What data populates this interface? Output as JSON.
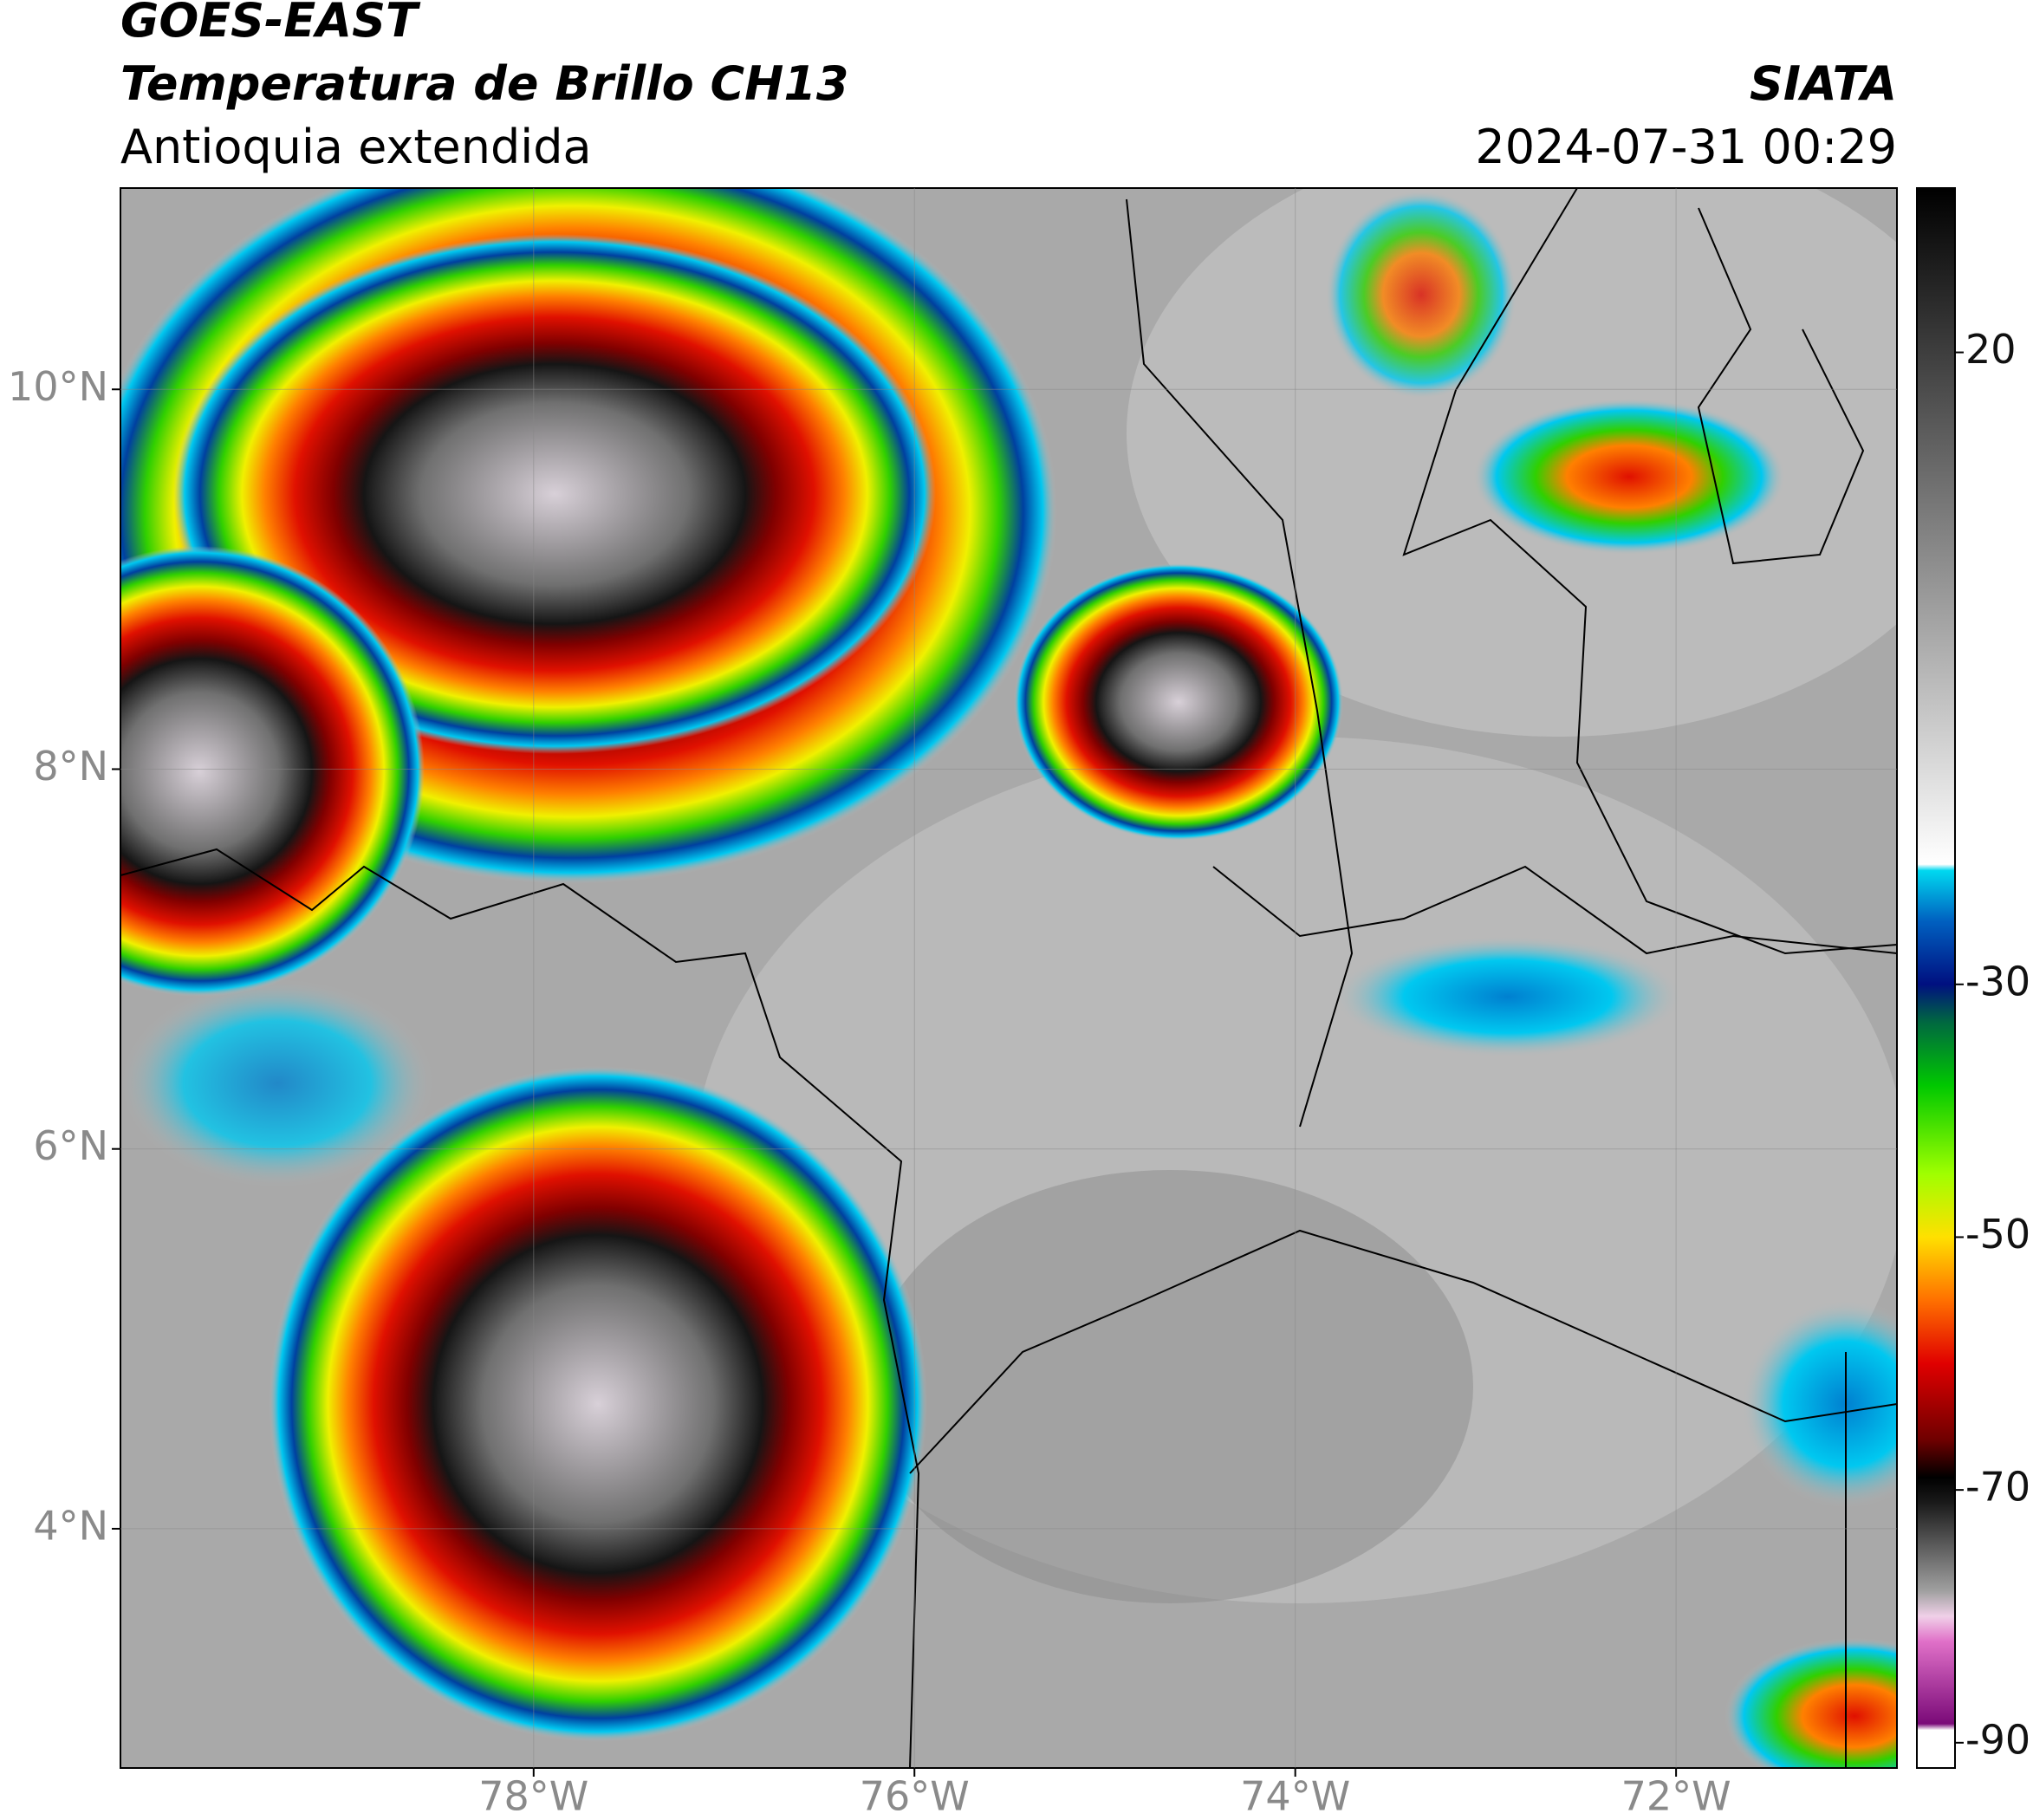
{
  "header": {
    "title": "GOES-EAST",
    "subtitle": "Temperatura de Brillo CH13",
    "region": "Antioquia extendida",
    "source": "SIATA",
    "datetime": "2024-07-31 00:29"
  },
  "chart_data": {
    "type": "map",
    "xlim": [
      -80.17,
      -70.84
    ],
    "ylim": [
      2.74,
      11.06
    ],
    "xticks": [
      {
        "value": -78,
        "label": "78°W"
      },
      {
        "value": -76,
        "label": "76°W"
      },
      {
        "value": -74,
        "label": "74°W"
      },
      {
        "value": -72,
        "label": "72°W"
      }
    ],
    "yticks": [
      {
        "value": 4,
        "label": "4°N"
      },
      {
        "value": 6,
        "label": "6°N"
      },
      {
        "value": 8,
        "label": "8°N"
      },
      {
        "value": 10,
        "label": "10°N"
      }
    ],
    "grid": true,
    "colorbar": {
      "ylim": [
        -92,
        33
      ],
      "yticks": [
        -90,
        -70,
        -50,
        -30,
        20
      ],
      "stops": [
        {
          "value": -92,
          "color": "#ffffff"
        },
        {
          "value": -89,
          "color": "#ffffff"
        },
        {
          "value": -88.5,
          "color": "#7a0a78"
        },
        {
          "value": -82,
          "color": "#e070c8"
        },
        {
          "value": -80,
          "color": "#f0d0e8"
        },
        {
          "value": -78,
          "color": "#a0a0a0"
        },
        {
          "value": -71,
          "color": "#1a1a1a"
        },
        {
          "value": -69,
          "color": "#000000"
        },
        {
          "value": -66,
          "color": "#700000"
        },
        {
          "value": -60,
          "color": "#e00000"
        },
        {
          "value": -55,
          "color": "#ff7000"
        },
        {
          "value": -50,
          "color": "#ffe000"
        },
        {
          "value": -45,
          "color": "#a0ff00"
        },
        {
          "value": -38,
          "color": "#00c800"
        },
        {
          "value": -33,
          "color": "#006840"
        },
        {
          "value": -30,
          "color": "#001080"
        },
        {
          "value": -25,
          "color": "#0060c0"
        },
        {
          "value": -21,
          "color": "#00d8f0"
        },
        {
          "value": -20.5,
          "color": "#ffffff"
        },
        {
          "value": 33,
          "color": "#000000"
        }
      ]
    }
  }
}
